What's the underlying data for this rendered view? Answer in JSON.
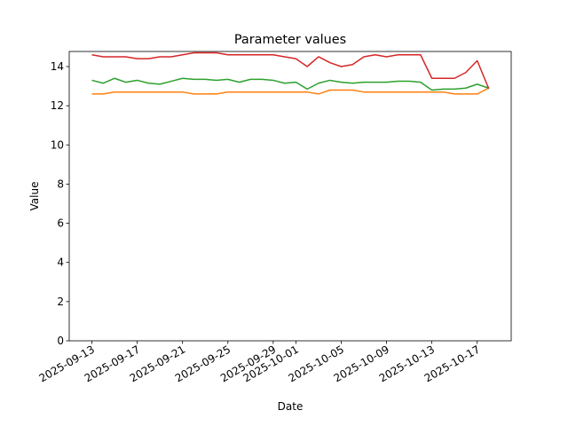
{
  "chart_data": {
    "type": "line",
    "title": "Parameter values",
    "xlabel": "Date",
    "ylabel": "Value",
    "x": [
      "2025-09-13",
      "2025-09-14",
      "2025-09-15",
      "2025-09-16",
      "2025-09-17",
      "2025-09-18",
      "2025-09-19",
      "2025-09-20",
      "2025-09-21",
      "2025-09-22",
      "2025-09-23",
      "2025-09-24",
      "2025-09-25",
      "2025-09-26",
      "2025-09-27",
      "2025-09-28",
      "2025-09-29",
      "2025-09-30",
      "2025-10-01",
      "2025-10-02",
      "2025-10-03",
      "2025-10-04",
      "2025-10-05",
      "2025-10-06",
      "2025-10-07",
      "2025-10-08",
      "2025-10-09",
      "2025-10-10",
      "2025-10-11",
      "2025-10-12",
      "2025-10-13",
      "2025-10-14",
      "2025-10-15",
      "2025-10-16",
      "2025-10-17",
      "2025-10-18"
    ],
    "series": [
      {
        "color": "#1f77b4",
        "x": [
          "2025-10-18",
          "2025-10-18"
        ],
        "values": [
          12.85,
          12.95
        ]
      },
      {
        "color": "#ff7f0e",
        "values": [
          12.6,
          12.6,
          12.7,
          12.7,
          12.7,
          12.7,
          12.7,
          12.7,
          12.7,
          12.6,
          12.6,
          12.6,
          12.7,
          12.7,
          12.7,
          12.7,
          12.7,
          12.7,
          12.7,
          12.7,
          12.6,
          12.8,
          12.8,
          12.8,
          12.7,
          12.7,
          12.7,
          12.7,
          12.7,
          12.7,
          12.7,
          12.7,
          12.6,
          12.6,
          12.6,
          12.9
        ]
      },
      {
        "color": "#2ca02c",
        "values": [
          13.3,
          13.15,
          13.4,
          13.2,
          13.3,
          13.15,
          13.1,
          13.25,
          13.4,
          13.35,
          13.35,
          13.3,
          13.35,
          13.2,
          13.35,
          13.35,
          13.3,
          13.15,
          13.2,
          12.85,
          13.15,
          13.3,
          13.2,
          13.15,
          13.2,
          13.2,
          13.2,
          13.25,
          13.25,
          13.2,
          12.8,
          12.85,
          12.85,
          12.9,
          13.1,
          12.9
        ]
      },
      {
        "color": "#d62728",
        "values": [
          14.6,
          14.5,
          14.5,
          14.5,
          14.4,
          14.4,
          14.5,
          14.5,
          14.6,
          14.7,
          14.7,
          14.7,
          14.6,
          14.6,
          14.6,
          14.6,
          14.6,
          14.5,
          14.4,
          14.0,
          14.5,
          14.2,
          14.0,
          14.1,
          14.5,
          14.6,
          14.5,
          14.6,
          14.6,
          14.6,
          13.4,
          13.4,
          13.4,
          13.7,
          14.3,
          12.9
        ]
      }
    ],
    "xlim": [
      "2025-09-11",
      "2025-10-20"
    ],
    "xticks": [
      "2025-09-13",
      "2025-09-17",
      "2025-09-21",
      "2025-09-25",
      "2025-09-29",
      "2025-10-01",
      "2025-10-05",
      "2025-10-09",
      "2025-10-13",
      "2025-10-17"
    ],
    "ylim": [
      0,
      14.77
    ],
    "yticks": [
      0,
      2,
      4,
      6,
      8,
      10,
      12,
      14
    ],
    "grid": false
  }
}
